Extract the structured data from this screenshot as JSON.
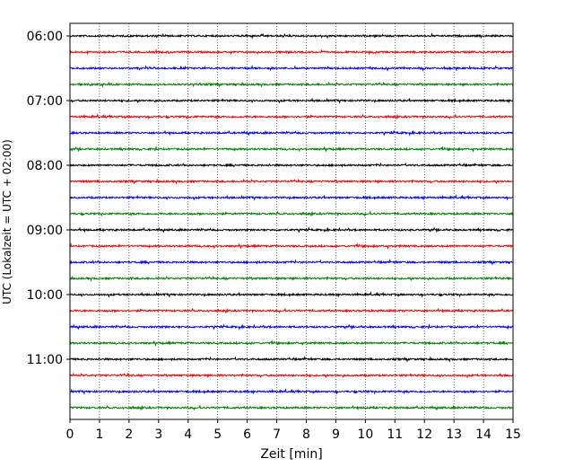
{
  "chart_data": {
    "type": "line",
    "xlabel": "Zeit  [min]",
    "ylabel": "UTC (Lokalzeit = UTC + 02:00)",
    "xlim": [
      0,
      15
    ],
    "x_ticks": [
      "0",
      "1",
      "2",
      "3",
      "4",
      "5",
      "6",
      "7",
      "8",
      "9",
      "10",
      "11",
      "12",
      "13",
      "14",
      "15"
    ],
    "y_tick_labels": [
      "06:00",
      "07:00",
      "08:00",
      "09:00",
      "10:00",
      "11:00"
    ],
    "row_start": "06:00",
    "row_interval_minutes": 15,
    "row_count": 24,
    "row_colors": [
      "#000000",
      "#ff0000",
      "#0000ff",
      "#008000"
    ],
    "grid": "vertical-dotted"
  }
}
